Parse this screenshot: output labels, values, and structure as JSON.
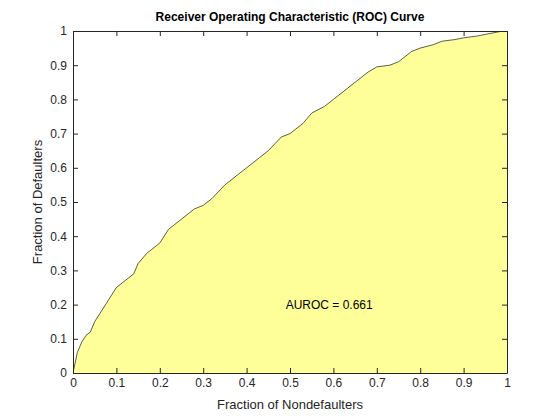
{
  "chart_data": {
    "type": "area",
    "title": "Receiver Operating Characteristic (ROC) Curve",
    "x_label": "Fraction of Nondefaulters",
    "y_label": "Fraction of Defaulters",
    "annotations": [
      {
        "text": "AUROC = 0.661",
        "x": 0.49,
        "y": 0.2
      }
    ],
    "x": [
      0,
      0.01,
      0.02,
      0.03,
      0.04,
      0.05,
      0.07,
      0.09,
      0.1,
      0.12,
      0.14,
      0.15,
      0.17,
      0.2,
      0.22,
      0.25,
      0.28,
      0.3,
      0.32,
      0.35,
      0.38,
      0.4,
      0.43,
      0.45,
      0.48,
      0.5,
      0.53,
      0.55,
      0.58,
      0.6,
      0.63,
      0.65,
      0.68,
      0.7,
      0.73,
      0.75,
      0.78,
      0.8,
      0.83,
      0.85,
      0.88,
      0.9,
      0.93,
      0.95,
      0.97,
      0.99,
      1
    ],
    "values": [
      0,
      0.06,
      0.09,
      0.11,
      0.12,
      0.15,
      0.19,
      0.23,
      0.25,
      0.27,
      0.29,
      0.32,
      0.35,
      0.38,
      0.42,
      0.45,
      0.48,
      0.49,
      0.51,
      0.55,
      0.58,
      0.6,
      0.63,
      0.65,
      0.69,
      0.7,
      0.73,
      0.76,
      0.78,
      0.8,
      0.83,
      0.85,
      0.88,
      0.895,
      0.9,
      0.91,
      0.94,
      0.95,
      0.96,
      0.97,
      0.975,
      0.98,
      0.985,
      0.99,
      0.995,
      1,
      1
    ],
    "color": "#ffff99",
    "xlim": [
      0,
      1
    ],
    "ylim": [
      0,
      1
    ],
    "xticks": [
      0,
      0.1,
      0.2,
      0.3,
      0.4,
      0.5,
      0.6,
      0.7,
      0.8,
      0.9,
      1
    ],
    "yticks": [
      0,
      0.1,
      0.2,
      0.3,
      0.4,
      0.5,
      0.6,
      0.7,
      0.8,
      0.9,
      1
    ],
    "grid": false
  }
}
